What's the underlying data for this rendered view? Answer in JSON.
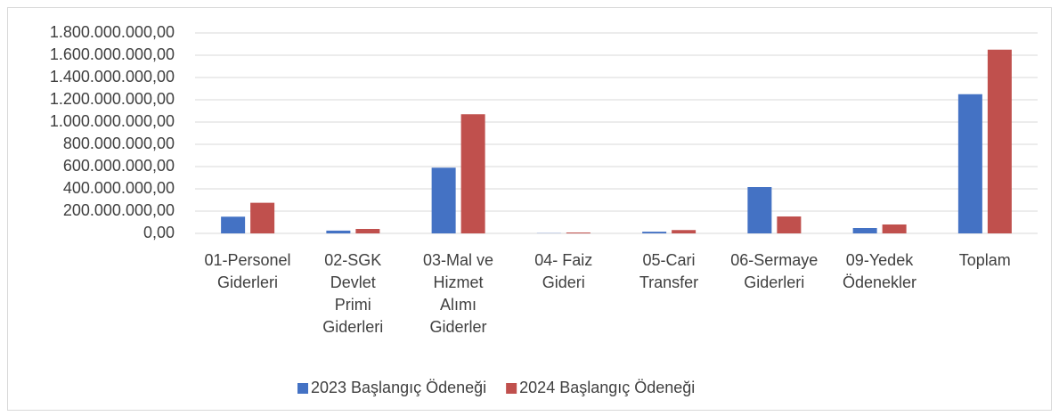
{
  "chart_data": {
    "type": "bar",
    "categories": [
      "01-Personel\nGiderleri",
      "02-SGK\nDevlet\nPrimi\nGiderleri",
      "03-Mal ve\nHizmet\nAlımı\nGiderler",
      "04- Faiz\nGideri",
      "05-Cari\nTransfer",
      "06-Sermaye\nGiderleri",
      "09-Yedek\nÖdenekler",
      "Toplam"
    ],
    "series": [
      {
        "name": "2023 Başlangıç Ödeneği",
        "color": "#4472c4",
        "values": [
          150000000,
          25000000,
          590000000,
          2000000,
          15000000,
          416000000,
          48000000,
          1250000000
        ]
      },
      {
        "name": "2024 Başlangıç Ödeneği",
        "color": "#c0504d",
        "values": [
          275000000,
          40000000,
          1070000000,
          8000000,
          30000000,
          152000000,
          80000000,
          1650000000
        ]
      }
    ],
    "ylim": [
      0,
      1800000000
    ],
    "yticks": [
      {
        "value": 0,
        "label": "0,00"
      },
      {
        "value": 200000000,
        "label": "200.000.000,00"
      },
      {
        "value": 400000000,
        "label": "400.000.000,00"
      },
      {
        "value": 600000000,
        "label": "600.000.000,00"
      },
      {
        "value": 800000000,
        "label": "800.000.000,00"
      },
      {
        "value": 1000000000,
        "label": "1.000.000.000,00"
      },
      {
        "value": 1200000000,
        "label": "1.200.000.000,00"
      },
      {
        "value": 1400000000,
        "label": "1.400.000.000,00"
      },
      {
        "value": 1600000000,
        "label": "1.600.000.000,00"
      },
      {
        "value": 1800000000,
        "label": "1.800.000.000,00"
      }
    ],
    "grid": true,
    "legend": "bottom"
  }
}
